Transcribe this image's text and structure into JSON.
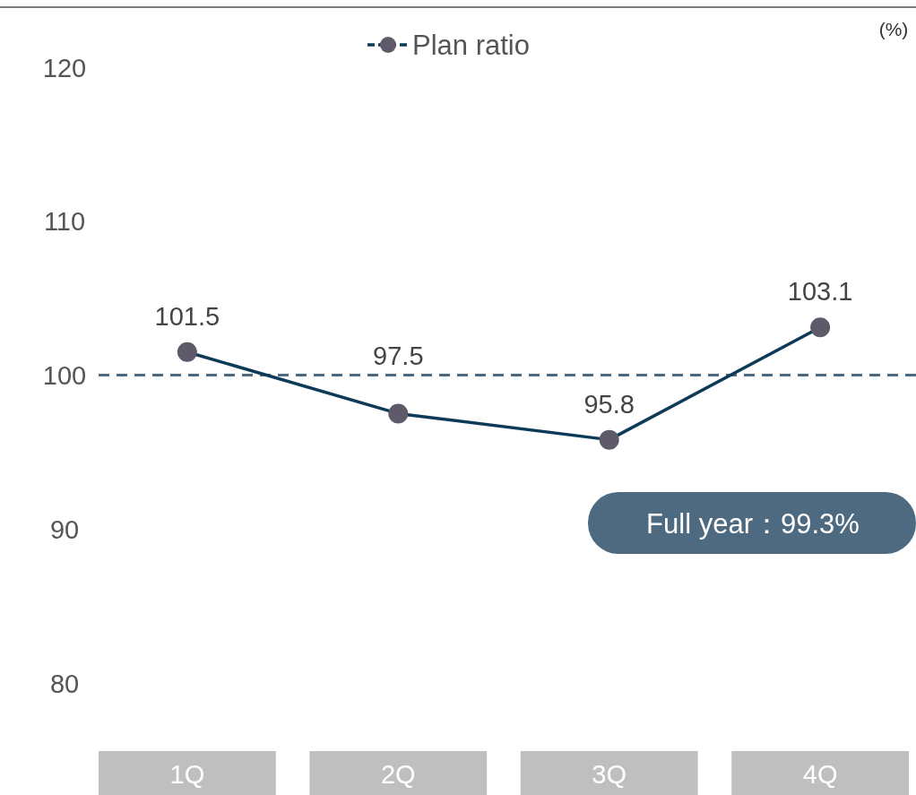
{
  "chart_data": {
    "type": "line",
    "ylabel": "(%)",
    "categories": [
      "1Q",
      "2Q",
      "3Q",
      "4Q"
    ],
    "series": [
      {
        "name": "Plan ratio",
        "color": "#0d3a56",
        "values": [
          101.5,
          97.5,
          95.8,
          103.1
        ]
      }
    ],
    "ylim": [
      80,
      120
    ],
    "yticks": [
      80,
      90,
      100,
      110,
      120
    ],
    "ref_lines": [
      {
        "axis": "y",
        "value": 100,
        "color": "#4d6a80",
        "line_style": "dashed"
      }
    ],
    "annotations": [
      "Full year：99.3%"
    ],
    "data_labels": true,
    "marker": "circle",
    "legend": "top",
    "grid": false
  }
}
